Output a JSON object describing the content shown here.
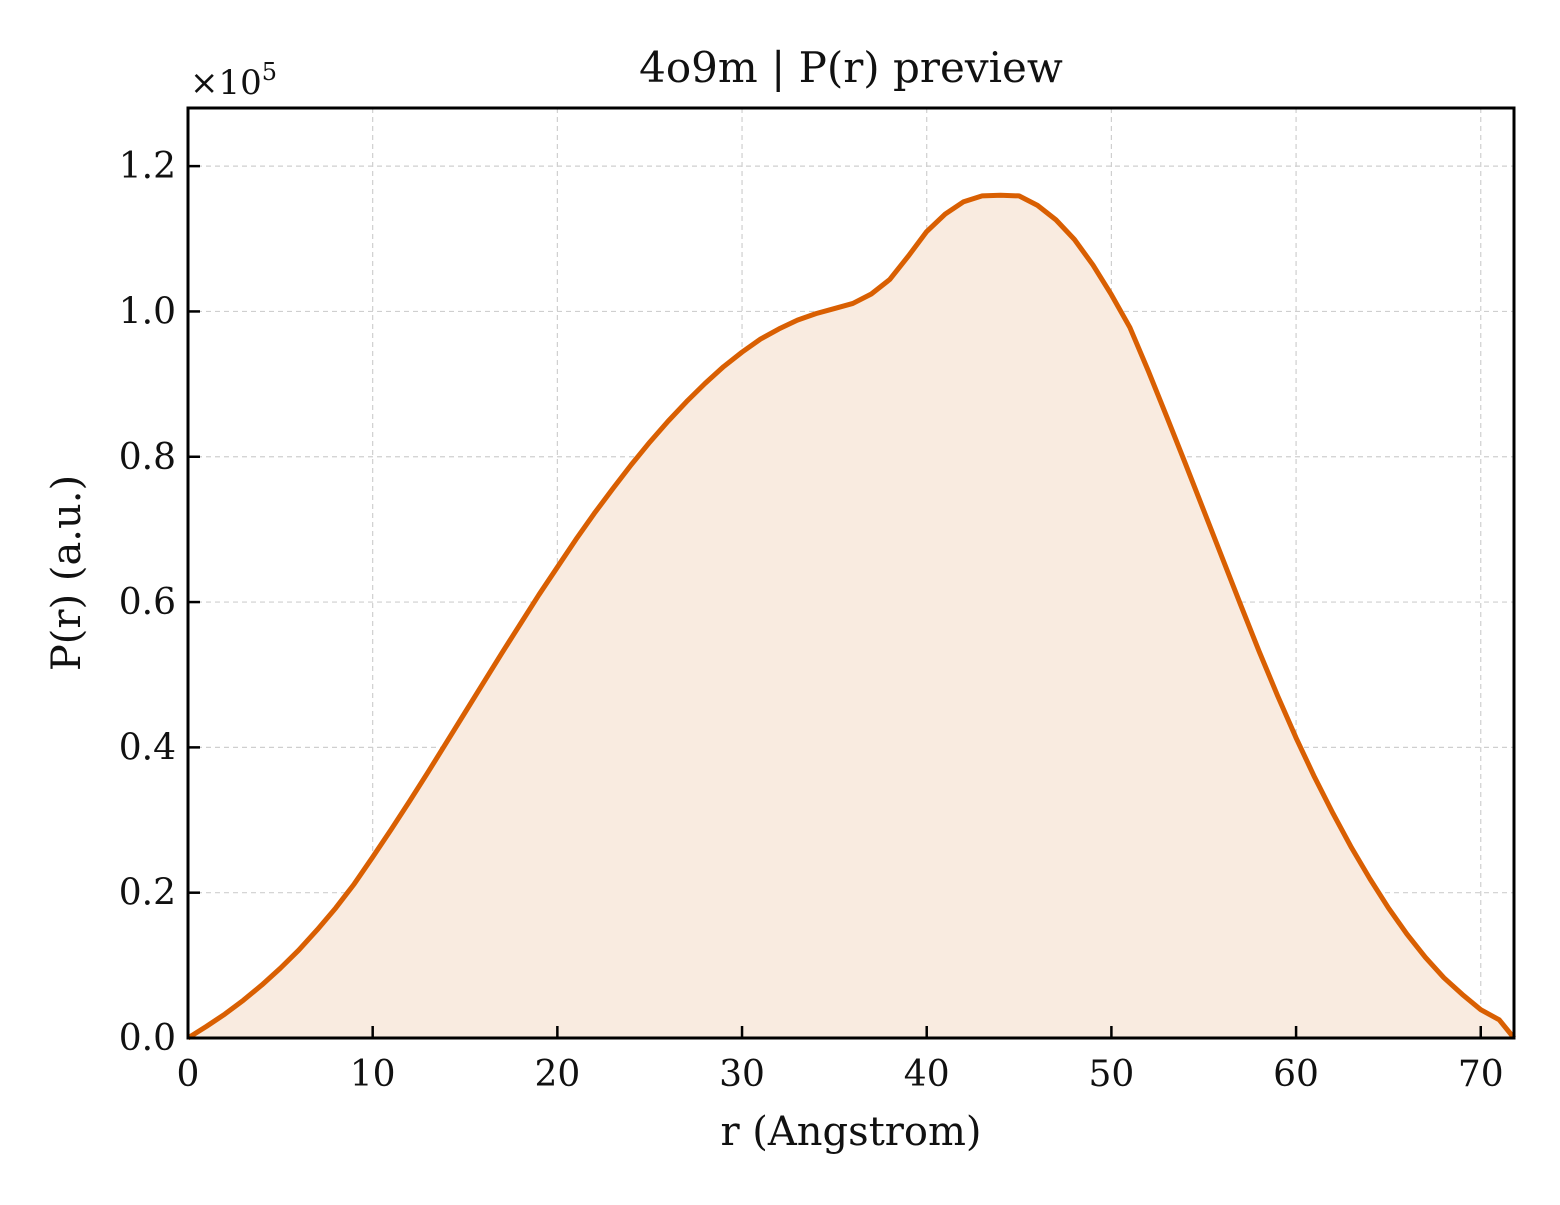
{
  "chart_data": {
    "type": "area",
    "title": "4o9m | P(r) preview",
    "xlabel": "r (Angstrom)",
    "ylabel": "P(r) (a.u.)",
    "y_multiplier": {
      "base": "×10",
      "exponent": "5"
    },
    "xlim": [
      0,
      71.8
    ],
    "ylim": [
      0,
      1.28
    ],
    "xticks": [
      0,
      10,
      20,
      30,
      40,
      50,
      60,
      70
    ],
    "yticks": [
      0.0,
      0.2,
      0.4,
      0.6,
      0.8,
      1.0,
      1.2
    ],
    "xtick_labels": [
      "0",
      "10",
      "20",
      "30",
      "40",
      "50",
      "60",
      "70"
    ],
    "ytick_labels": [
      "0.0",
      "0.2",
      "0.4",
      "0.6",
      "0.8",
      "1.0",
      "1.2"
    ],
    "grid": true,
    "colors": {
      "line": "#d95f02",
      "fill": "#f9ebe0"
    },
    "series": [
      {
        "x": [
          0,
          1,
          2,
          3,
          4,
          5,
          6,
          7,
          8,
          9,
          10,
          11,
          12,
          13,
          14,
          15,
          16,
          17,
          18,
          19,
          20,
          21,
          22,
          23,
          24,
          25,
          26,
          27,
          28,
          29,
          30,
          31,
          32,
          33,
          34,
          35,
          36,
          37,
          38,
          39,
          40,
          41,
          42,
          43,
          44,
          45,
          46,
          47,
          48,
          49,
          50,
          51,
          52,
          53,
          54,
          55,
          56,
          57,
          58,
          59,
          60,
          61,
          62,
          63,
          64,
          65,
          66,
          67,
          68,
          69,
          70,
          71,
          71.8
        ],
        "y": [
          0.0,
          0.016,
          0.033,
          0.052,
          0.073,
          0.096,
          0.121,
          0.149,
          0.179,
          0.212,
          0.249,
          0.287,
          0.326,
          0.366,
          0.407,
          0.448,
          0.489,
          0.53,
          0.57,
          0.61,
          0.648,
          0.686,
          0.722,
          0.756,
          0.789,
          0.82,
          0.849,
          0.876,
          0.901,
          0.924,
          0.944,
          0.962,
          0.976,
          0.988,
          0.997,
          1.004,
          1.011,
          1.024,
          1.044,
          1.076,
          1.11,
          1.134,
          1.151,
          1.159,
          1.16,
          1.159,
          1.146,
          1.126,
          1.099,
          1.064,
          1.023,
          0.978,
          0.918,
          0.855,
          0.791,
          0.726,
          0.661,
          0.596,
          0.532,
          0.471,
          0.413,
          0.359,
          0.309,
          0.262,
          0.219,
          0.179,
          0.143,
          0.111,
          0.083,
          0.06,
          0.039,
          0.025,
          0.0
        ]
      }
    ]
  }
}
